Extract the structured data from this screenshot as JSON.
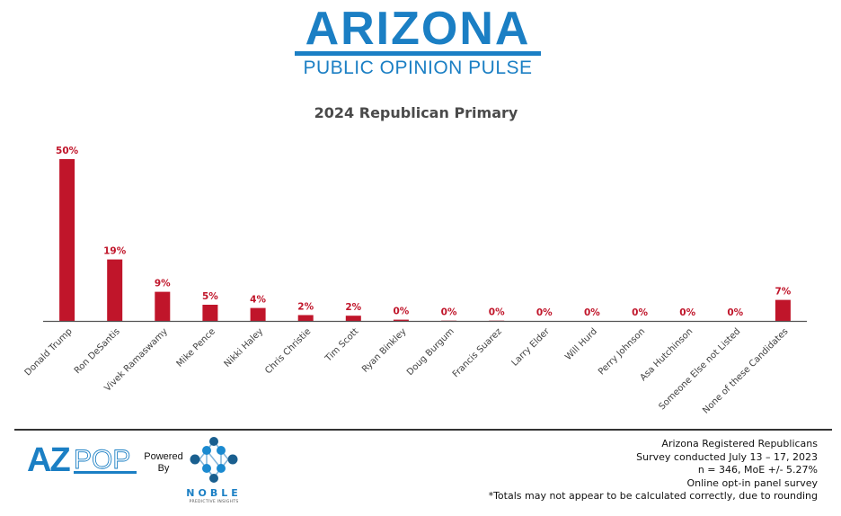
{
  "header": {
    "logo_title": "ARIZONA",
    "logo_subtitle": "PUBLIC OPINION PULSE"
  },
  "chart_data": {
    "type": "bar",
    "title": "2024 Republican Primary",
    "xlabel": "",
    "ylabel": "",
    "ylim": [
      0,
      50
    ],
    "grid": false,
    "legend": "none",
    "bar_color": "#c0152a",
    "categories": [
      "Donald Trump",
      "Ron DeSantis",
      "Vivek Ramaswamy",
      "Mike Pence",
      "Nikki Haley",
      "Chris Christie",
      "Tim Scott",
      "Ryan Binkley",
      "Doug Burgum",
      "Francis Suarez",
      "Larry Elder",
      "Will Hurd",
      "Perry Johnson",
      "Asa Hutchinson",
      "Someone Else not Listed",
      "None of these Candidates"
    ],
    "values": [
      50,
      19,
      9,
      5,
      4,
      2,
      2,
      0,
      0,
      0,
      0,
      0,
      0,
      0,
      0,
      7
    ],
    "bar_heights_pct": [
      50,
      19,
      9,
      5,
      4,
      1.8,
      1.6,
      0.4,
      0.2,
      0.2,
      0,
      0,
      0,
      0,
      0,
      6.5
    ],
    "data_labels": [
      "50%",
      "19%",
      "9%",
      "5%",
      "4%",
      "2%",
      "2%",
      "0%",
      "0%",
      "0%",
      "0%",
      "0%",
      "0%",
      "0%",
      "0%",
      "7%"
    ]
  },
  "footer": {
    "azpop_logo": "AZPOP",
    "powered_by": [
      "Powered",
      "By"
    ],
    "noble_name": "NOBLE",
    "noble_tagline": "PREDICTIVE INSIGHTS",
    "notes": [
      "Arizona Registered Republicans",
      "Survey conducted July 13 – 17, 2023",
      "n = 346, MoE +/- 5.27%",
      "Online opt-in panel survey",
      "*Totals may not appear to be calculated correctly, due to rounding"
    ]
  }
}
